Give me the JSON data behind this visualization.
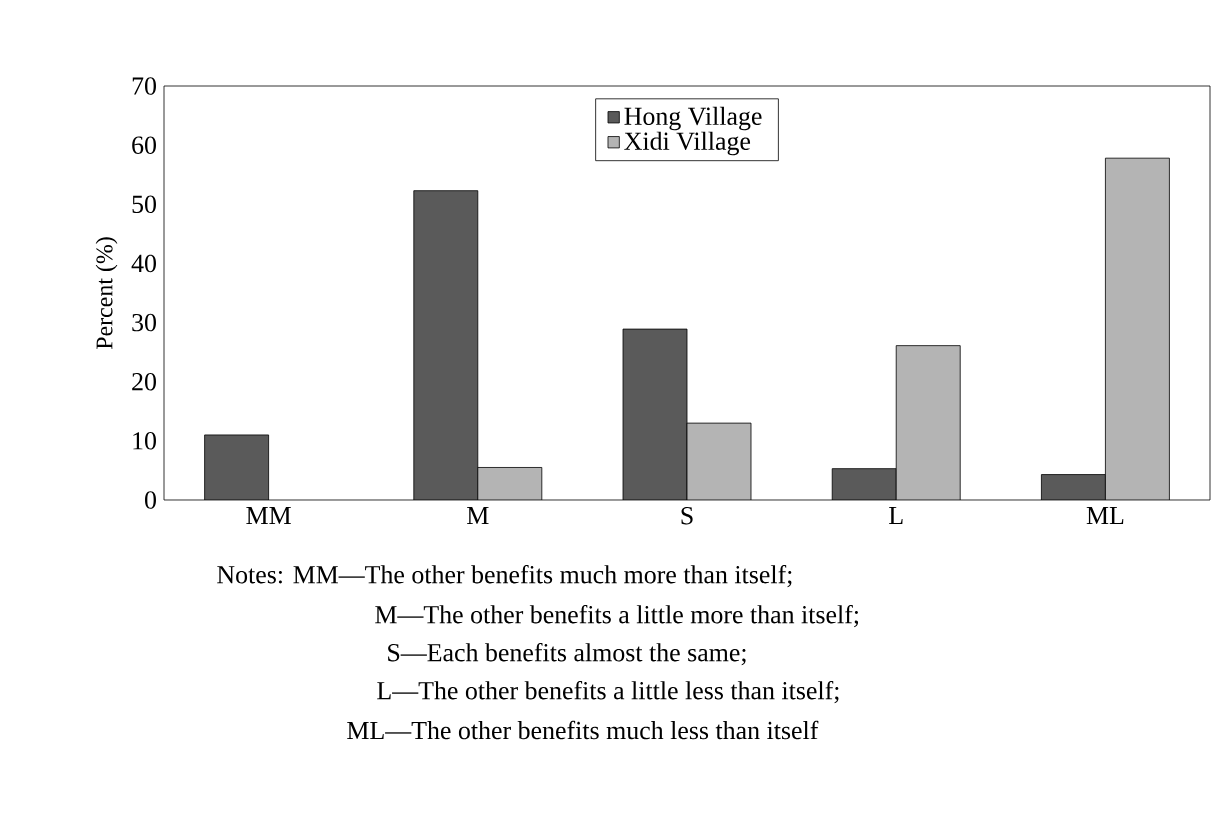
{
  "chart_data": {
    "type": "bar",
    "ylabel": "Percent (%)",
    "categories": [
      "MM",
      "M",
      "S",
      "L",
      "ML"
    ],
    "series": [
      {
        "name": "Hong Village",
        "color": "#5a5a5a",
        "values": [
          11,
          52.3,
          28.9,
          5.3,
          4.3
        ]
      },
      {
        "name": "Xidi Village",
        "color": "#b4b4b4",
        "values": [
          null,
          5.5,
          13,
          26.1,
          57.8
        ]
      }
    ],
    "ylim": [
      0,
      70
    ],
    "yticks": [
      0,
      10,
      20,
      30,
      40,
      50,
      60,
      70
    ],
    "grid": false,
    "legend": "top",
    "annotations": [
      "Notes: MM—The other benefits much more than itself;",
      "M—The other benefits a little more than itself;",
      "S—Each benefits almost the same;",
      "L—The other benefits a little less than itself;",
      "ML—The other benefits much less than itself"
    ]
  }
}
